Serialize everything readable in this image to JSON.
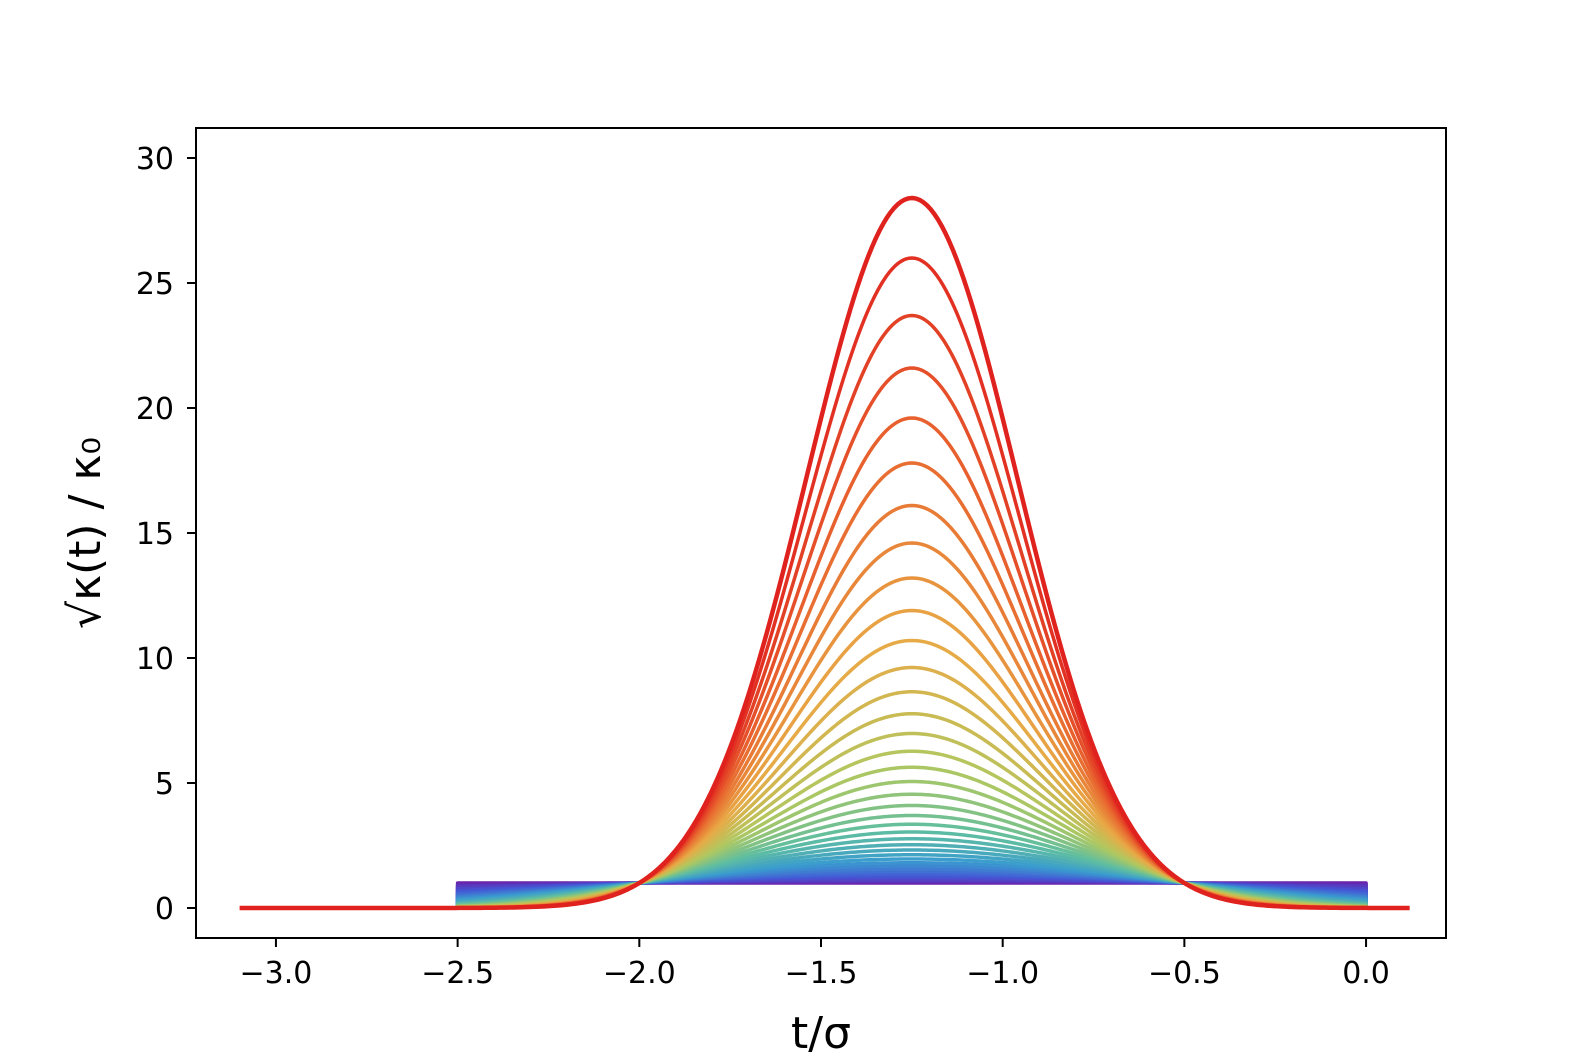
{
  "chart_data": {
    "type": "line",
    "title": "",
    "xlabel": "t/σ",
    "ylabel": "√κ(t) / κ₀",
    "xlim": [
      -3.22,
      0.22
    ],
    "ylim": [
      -1.2,
      31.2
    ],
    "xticks": [
      {
        "value": -3.0,
        "label": "−3.0"
      },
      {
        "value": -2.5,
        "label": "−2.5"
      },
      {
        "value": -2.0,
        "label": "−2.0"
      },
      {
        "value": -1.5,
        "label": "−1.5"
      },
      {
        "value": -1.0,
        "label": "−1.0"
      },
      {
        "value": -0.5,
        "label": "−0.5"
      },
      {
        "value": 0.0,
        "label": "0.0"
      }
    ],
    "yticks": [
      {
        "value": 0,
        "label": "0"
      },
      {
        "value": 5,
        "label": "5"
      },
      {
        "value": 10,
        "label": "10"
      },
      {
        "value": 15,
        "label": "15"
      },
      {
        "value": 20,
        "label": "20"
      },
      {
        "value": 25,
        "label": "25"
      },
      {
        "value": 30,
        "label": "30"
      }
    ],
    "grid": false,
    "legend": "none",
    "colormap": "rainbow",
    "colormap_start": "#6a1fa8",
    "colormap_end": "#e0221e",
    "series_count": 40,
    "center": -1.25,
    "square_pulse": {
      "x_start": -2.5,
      "x_end": 0.0,
      "height": 1.0
    },
    "outer_curve": {
      "x_start": -3.1,
      "x_end": 0.12,
      "peak": 28.4
    },
    "peaks": [
      1.0,
      1.03,
      1.07,
      1.11,
      1.16,
      1.22,
      1.29,
      1.37,
      1.46,
      1.56,
      1.68,
      1.81,
      1.96,
      2.13,
      2.32,
      2.53,
      2.77,
      3.04,
      3.35,
      3.7,
      4.1,
      4.55,
      5.06,
      5.63,
      6.27,
      6.98,
      7.77,
      8.65,
      9.62,
      10.7,
      11.9,
      13.2,
      14.6,
      16.1,
      17.8,
      19.6,
      21.6,
      23.7,
      26.0,
      28.4
    ]
  }
}
